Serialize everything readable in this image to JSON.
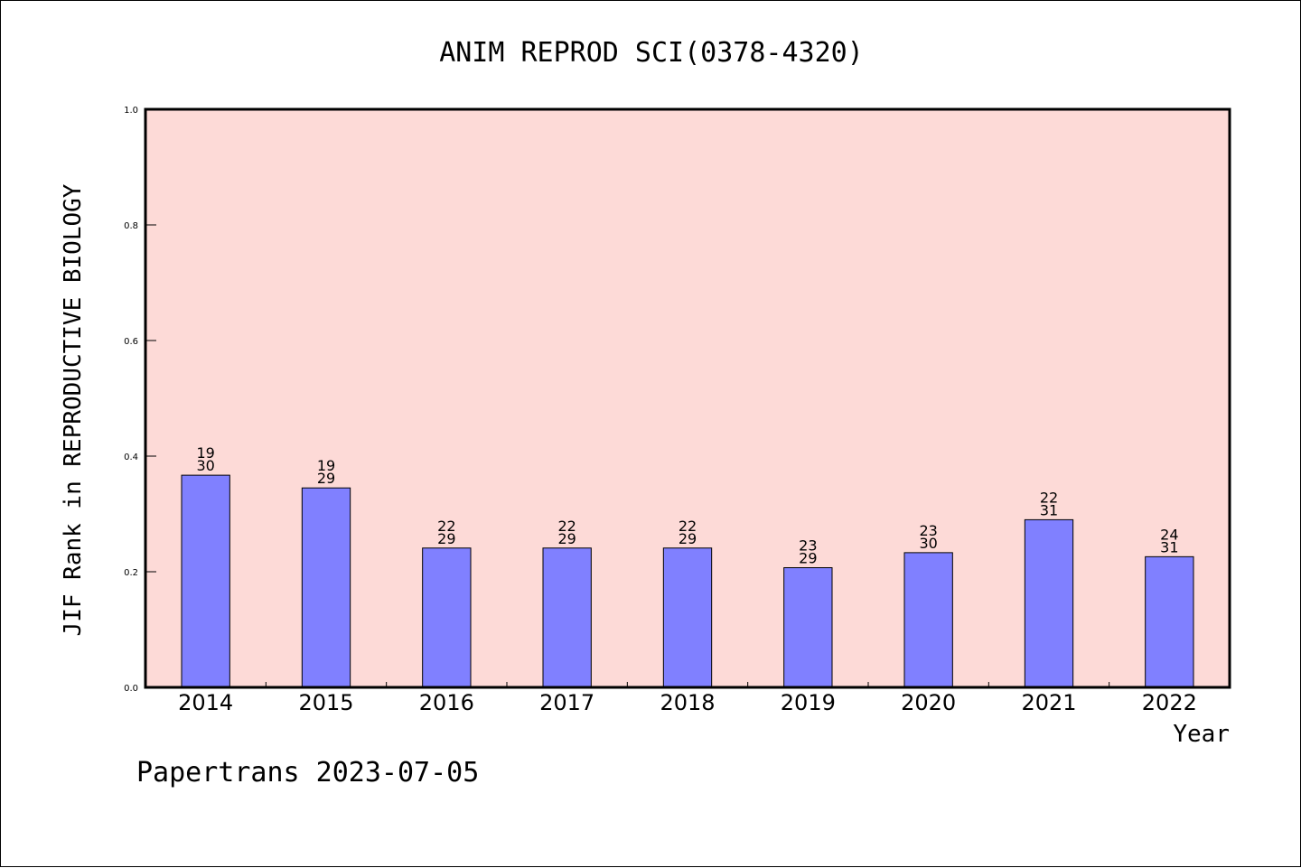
{
  "chart_data": {
    "type": "bar",
    "title": "ANIM REPROD SCI(0378-4320)",
    "xlabel": "Year",
    "ylabel": "JIF Rank in REPRODUCTIVE BIOLOGY",
    "ylim": [
      0,
      1.0
    ],
    "yticks": [
      "0.0",
      "0.2",
      "0.4",
      "0.6",
      "0.8",
      "1.0"
    ],
    "categories": [
      "2014",
      "2015",
      "2016",
      "2017",
      "2018",
      "2019",
      "2020",
      "2021",
      "2022"
    ],
    "values": [
      0.367,
      0.345,
      0.241,
      0.241,
      0.241,
      0.207,
      0.233,
      0.29,
      0.226
    ],
    "rank": [
      "19",
      "19",
      "22",
      "22",
      "22",
      "23",
      "23",
      "22",
      "24"
    ],
    "total": [
      "30",
      "29",
      "29",
      "29",
      "29",
      "29",
      "30",
      "31",
      "31"
    ],
    "grid": false,
    "colors": {
      "plot_background": "#fddad7",
      "bar_fill": "#8080ff",
      "bar_stroke": "#000000"
    }
  },
  "footer": {
    "text": "Papertrans 2023-07-05"
  }
}
